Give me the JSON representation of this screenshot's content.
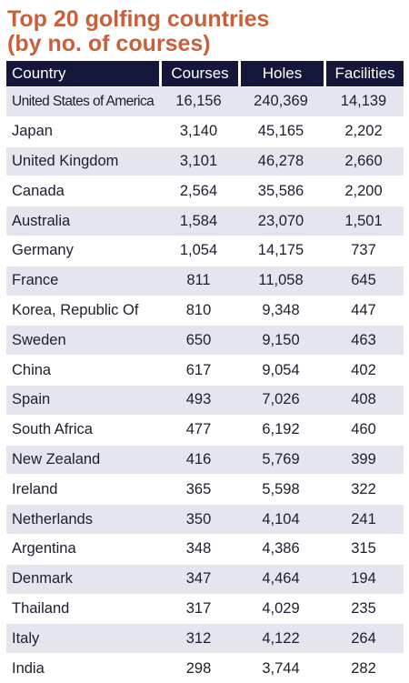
{
  "title_lines": [
    "Top 20 golfing countries",
    "(by no. of courses)"
  ],
  "chart_data": {
    "type": "table",
    "title": "Top 20 golfing countries (by no. of courses)",
    "columns": [
      "Country",
      "Courses",
      "Holes",
      "Facilities"
    ],
    "rows": [
      [
        "United States of America",
        "16,156",
        "240,369",
        "14,139"
      ],
      [
        "Japan",
        "3,140",
        "45,165",
        "2,202"
      ],
      [
        "United Kingdom",
        "3,101",
        "46,278",
        "2,660"
      ],
      [
        "Canada",
        "2,564",
        "35,586",
        "2,200"
      ],
      [
        "Australia",
        "1,584",
        "23,070",
        "1,501"
      ],
      [
        "Germany",
        "1,054",
        "14,175",
        "737"
      ],
      [
        "France",
        "811",
        "11,058",
        "645"
      ],
      [
        "Korea, Republic Of",
        "810",
        "9,348",
        "447"
      ],
      [
        "Sweden",
        "650",
        "9,150",
        "463"
      ],
      [
        "China",
        "617",
        "9,054",
        "402"
      ],
      [
        "Spain",
        "493",
        "7,026",
        "408"
      ],
      [
        "South Africa",
        "477",
        "6,192",
        "460"
      ],
      [
        "New Zealand",
        "416",
        "5,769",
        "399"
      ],
      [
        "Ireland",
        "365",
        "5,598",
        "322"
      ],
      [
        "Netherlands",
        "350",
        "4,104",
        "241"
      ],
      [
        "Argentina",
        "348",
        "4,386",
        "315"
      ],
      [
        "Denmark",
        "347",
        "4,464",
        "194"
      ],
      [
        "Thailand",
        "317",
        "4,029",
        "235"
      ],
      [
        "Italy",
        "312",
        "4,122",
        "264"
      ],
      [
        "India",
        "298",
        "3,744",
        "282"
      ]
    ]
  },
  "colors": {
    "title": "#c9603a",
    "header_bg": "#15173a",
    "header_text": "#ffffff",
    "row_alt_bg": "#e5e5ef",
    "row_bg": "#ffffff"
  }
}
